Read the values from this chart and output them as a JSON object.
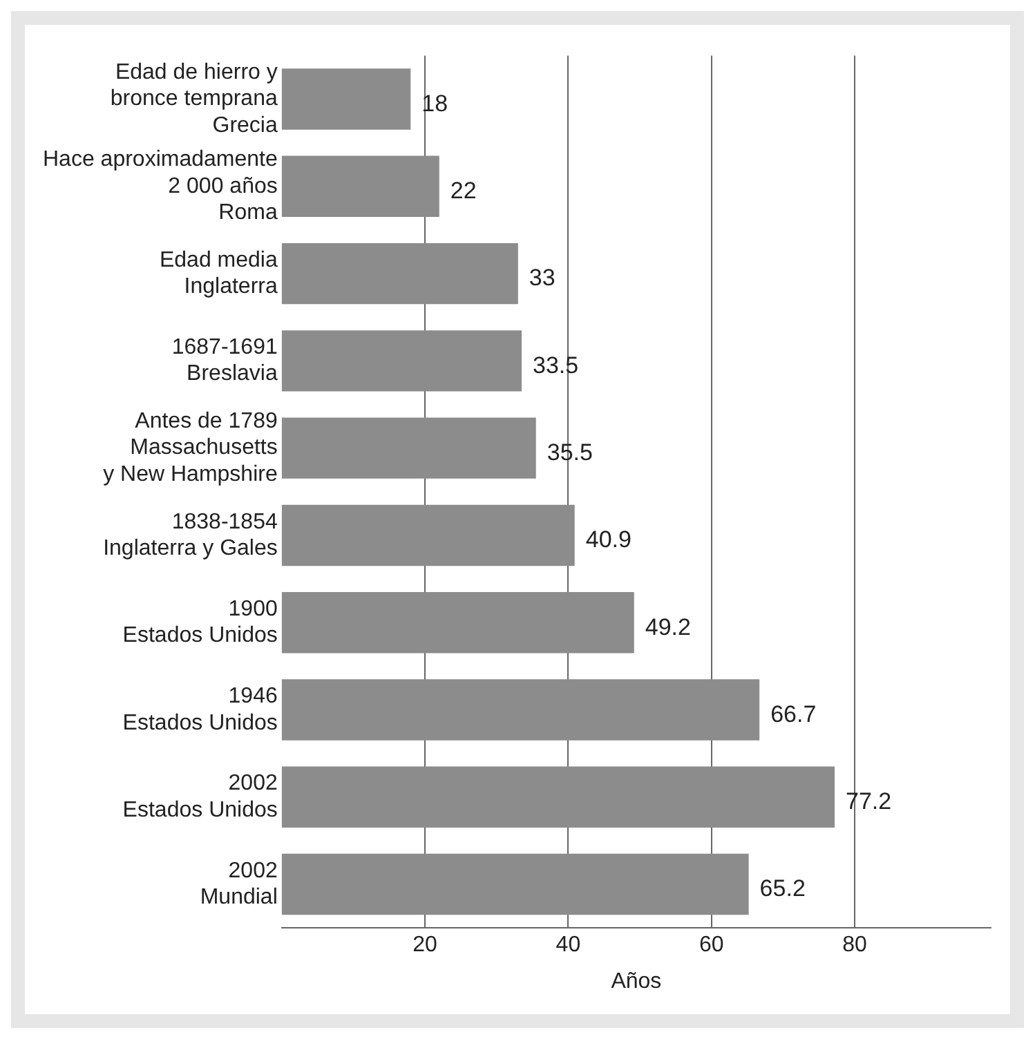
{
  "chart_data": {
    "type": "bar",
    "orientation": "horizontal",
    "xlabel": "Años",
    "categories": [
      "Edad de hierro y\nbronce temprana\nGrecia",
      "Hace aproximadamente\n2 000 años\nRoma",
      "Edad media\nInglaterra",
      "1687-1691\nBreslavia",
      "Antes de 1789\nMassachusetts\ny New Hampshire",
      "1838-1854\nInglaterra y Gales",
      "1900\nEstados Unidos",
      "1946\nEstados Unidos",
      "2002\nEstados Unidos",
      "2002\nMundial"
    ],
    "values": [
      18,
      22,
      33,
      33.5,
      35.5,
      40.9,
      49.2,
      66.7,
      77.2,
      65.2
    ],
    "color": "#8c8c8c",
    "xlim": [
      0,
      99
    ],
    "xticks": [
      20,
      40,
      60,
      80
    ],
    "grid": "x",
    "data_labels": true
  }
}
